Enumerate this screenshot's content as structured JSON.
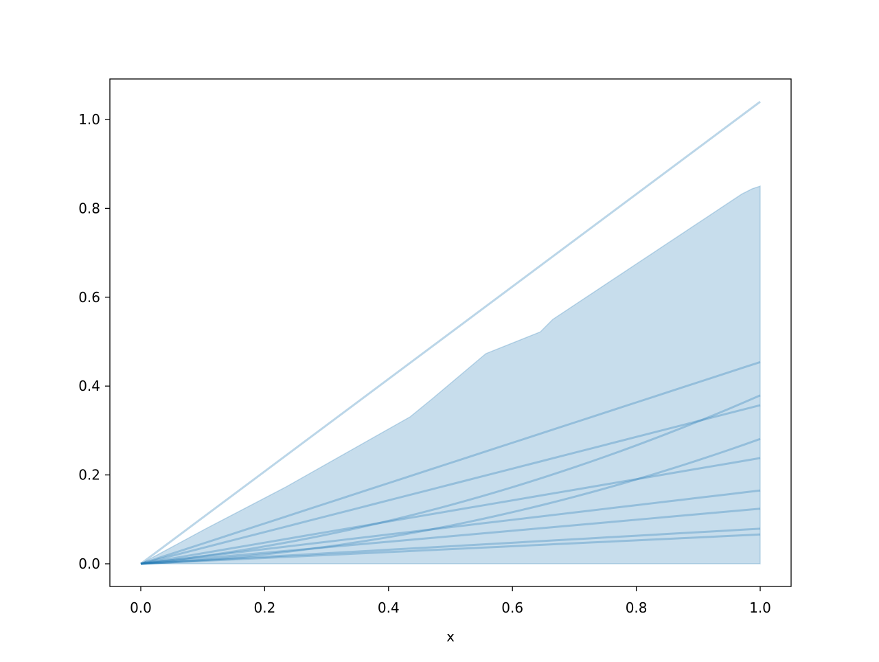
{
  "chart_data": {
    "type": "line",
    "title": "",
    "xlabel": "x",
    "ylabel": "",
    "xlim": [
      -0.05,
      1.05
    ],
    "ylim": [
      -0.05,
      1.09
    ],
    "xticks": [
      "0.0",
      "0.2",
      "0.4",
      "0.6",
      "0.8",
      "1.0"
    ],
    "yticks": [
      "0.0",
      "0.2",
      "0.4",
      "0.6",
      "0.8",
      "1.0"
    ],
    "grid": false,
    "color": "#1f77b4",
    "upper_line": {
      "x": [
        0,
        1
      ],
      "y": [
        0,
        1.04
      ]
    },
    "band": {
      "x": [
        0,
        0.105,
        0.233,
        0.435,
        0.471,
        0.557,
        0.645,
        0.665,
        0.97,
        0.987,
        1.0
      ],
      "upper": [
        0,
        0.079,
        0.172,
        0.331,
        0.372,
        0.473,
        0.522,
        0.55,
        0.832,
        0.844,
        0.85
      ],
      "lower": 0
    },
    "series": [
      {
        "kind": "linear",
        "end": 0.454
      },
      {
        "kind": "quadratic",
        "a": 0.15,
        "b": 0.229
      },
      {
        "kind": "linear",
        "end": 0.357
      },
      {
        "kind": "quadratic",
        "a": 0.0625,
        "b": 0.2185
      },
      {
        "kind": "linear",
        "end": 0.238
      },
      {
        "kind": "linear",
        "end": 0.165
      },
      {
        "kind": "linear",
        "end": 0.124
      },
      {
        "kind": "linear",
        "end": 0.079
      },
      {
        "kind": "linear",
        "end": 0.066
      }
    ]
  }
}
